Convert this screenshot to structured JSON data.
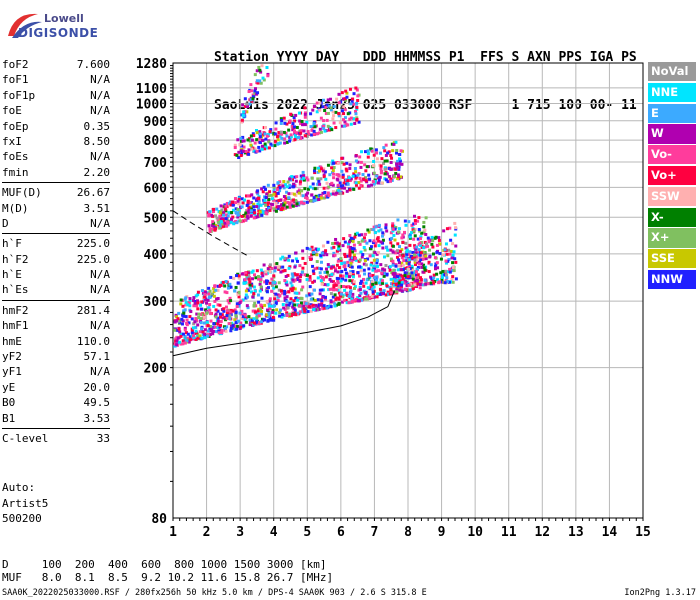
{
  "logo": {
    "line1": "Lowell",
    "line2": "DIGISONDE"
  },
  "header": {
    "labels": [
      "Station",
      "YYYY",
      "DAY",
      "DDD",
      "HHMMSS",
      "P1",
      "FFS",
      "S",
      "AXN",
      "PPS",
      "IGA",
      "PS"
    ],
    "values": [
      "SaoLuis",
      "2022",
      "Jan25",
      "025",
      "033000",
      "RSF",
      "1",
      "715",
      "100",
      "00-",
      "11"
    ]
  },
  "params_groups": [
    [
      {
        "name": "foF2",
        "value": "7.600"
      },
      {
        "name": "foF1",
        "value": "N/A"
      },
      {
        "name": "foF1p",
        "value": "N/A"
      },
      {
        "name": "foE",
        "value": "N/A"
      },
      {
        "name": "foEp",
        "value": "0.35"
      },
      {
        "name": "fxI",
        "value": "8.50"
      },
      {
        "name": "foEs",
        "value": "N/A"
      },
      {
        "name": "fmin",
        "value": "2.20"
      }
    ],
    [
      {
        "name": "MUF(D)",
        "value": "26.67"
      },
      {
        "name": "M(D)",
        "value": "3.51"
      },
      {
        "name": "D",
        "value": "N/A"
      }
    ],
    [
      {
        "name": "h`F",
        "value": "225.0"
      },
      {
        "name": "h`F2",
        "value": "225.0"
      },
      {
        "name": "h`E",
        "value": "N/A"
      },
      {
        "name": "h`Es",
        "value": "N/A"
      }
    ],
    [
      {
        "name": "hmF2",
        "value": "281.4"
      },
      {
        "name": "hmF1",
        "value": "N/A"
      },
      {
        "name": "hmE",
        "value": "110.0"
      },
      {
        "name": "yF2",
        "value": "57.1"
      },
      {
        "name": "yF1",
        "value": "N/A"
      },
      {
        "name": "yE",
        "value": "20.0"
      },
      {
        "name": "B0",
        "value": "49.5"
      },
      {
        "name": "B1",
        "value": "3.53"
      }
    ],
    [
      {
        "name": "C-level",
        "value": "33"
      }
    ]
  ],
  "auto": {
    "line1": "Auto:",
    "line2": "Artist5",
    "line3": "500200"
  },
  "dmuf": {
    "d_label": "D",
    "d_values": [
      "100",
      "200",
      "400",
      "600",
      "800",
      "1000",
      "1500",
      "3000"
    ],
    "d_unit": "[km]",
    "muf_label": "MUF",
    "muf_values": [
      "8.0",
      "8.1",
      "8.5",
      "9.2",
      "10.2",
      "11.6",
      "15.8",
      "26.7"
    ],
    "muf_unit": "[MHz]"
  },
  "footer": {
    "left": "SAA0K_2022025033000.RSF / 280fx256h 50 kHz 5.0 km / DPS-4 SAA0K 903 / 2.6 S 315.8 E",
    "right": "Ion2Png 1.3.17"
  },
  "legend": [
    {
      "label": "NoVal",
      "color": "#9a9a9a"
    },
    {
      "label": "NNE",
      "color": "#00e5ff"
    },
    {
      "label": "E",
      "color": "#3caaff"
    },
    {
      "label": "W",
      "color": "#b000b0"
    },
    {
      "label": "Vo-",
      "color": "#ff3c9c"
    },
    {
      "label": "Vo+",
      "color": "#ff0040"
    },
    {
      "label": "SSW",
      "color": "#ffb0b0"
    },
    {
      "label": "X-",
      "color": "#008000"
    },
    {
      "label": "X+",
      "color": "#80c060"
    },
    {
      "label": "SSE",
      "color": "#c8c800"
    },
    {
      "label": "NNW",
      "color": "#2020ff"
    }
  ],
  "chart_data": {
    "type": "scatter",
    "title": "",
    "xlabel": "",
    "ylabel": "",
    "xlim": [
      1,
      15
    ],
    "ylim": [
      80,
      1280
    ],
    "y_scale": "log",
    "x_ticks": [
      1,
      2,
      3,
      4,
      5,
      6,
      7,
      8,
      9,
      10,
      11,
      12,
      13,
      14,
      15
    ],
    "y_ticks": [
      80,
      200,
      300,
      400,
      500,
      600,
      700,
      800,
      900,
      1000,
      1100,
      1280
    ],
    "grid": true,
    "clusters": [
      {
        "name": "F-trace",
        "x_range": [
          1.0,
          8.5
        ],
        "h_start": 230,
        "h_end": 330,
        "spread": 120,
        "density": 1500
      },
      {
        "name": "F-trace-tail",
        "x_range": [
          7.5,
          9.4
        ],
        "h_start": 330,
        "h_end": 340,
        "spread": 100,
        "density": 260
      },
      {
        "name": "2F-trace",
        "x_range": [
          2.0,
          7.8
        ],
        "h_start": 460,
        "h_end": 640,
        "spread": 110,
        "density": 700
      },
      {
        "name": "3F-trace",
        "x_range": [
          2.8,
          6.5
        ],
        "h_start": 720,
        "h_end": 900,
        "spread": 140,
        "density": 300
      },
      {
        "name": "4F-trace",
        "x_range": [
          3.0,
          3.8
        ],
        "h_start": 900,
        "h_end": 1200,
        "spread": 150,
        "density": 60
      }
    ],
    "profile_line": {
      "x": [
        1.0,
        2.0,
        3.0,
        4.0,
        5.0,
        6.0,
        6.8,
        7.4,
        7.6
      ],
      "y": [
        215,
        225,
        232,
        240,
        248,
        258,
        272,
        290,
        320
      ]
    },
    "dashed_line": {
      "x": [
        1.0,
        1.6,
        2.2,
        2.8,
        3.3
      ],
      "y": [
        520,
        480,
        445,
        415,
        392
      ]
    }
  }
}
